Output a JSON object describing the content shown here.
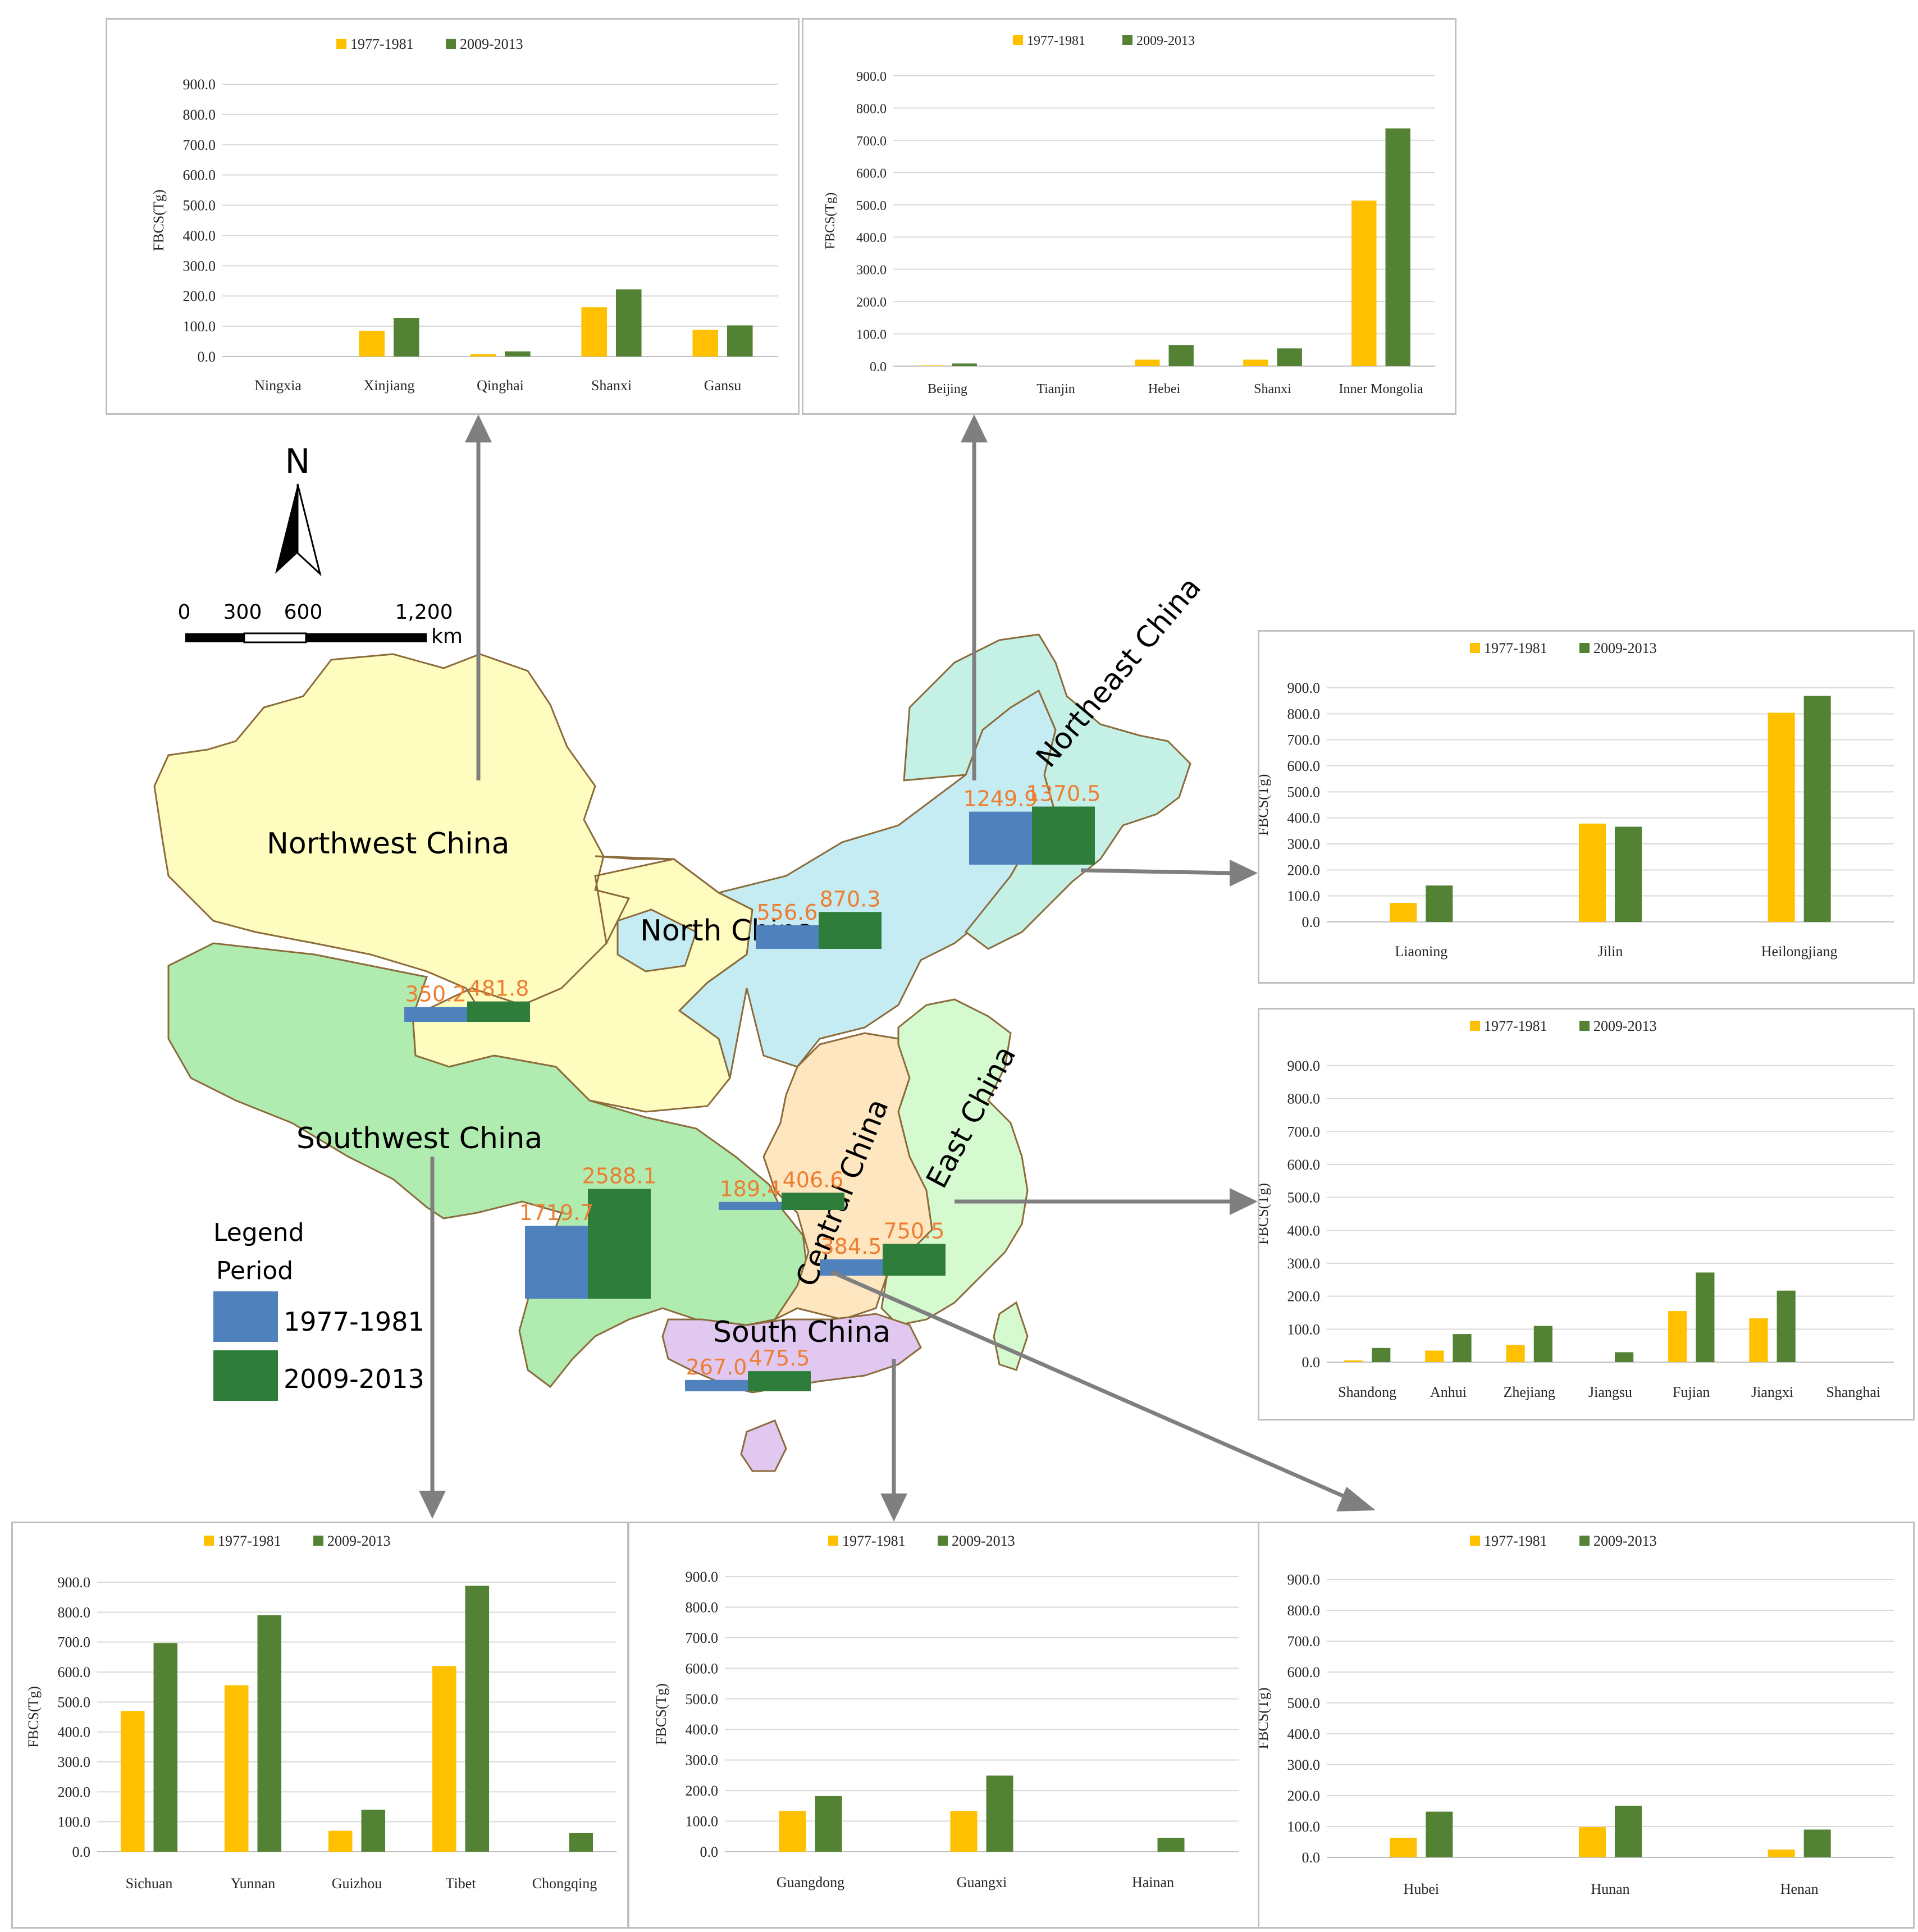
{
  "colors": {
    "early_bar": "#ffc000",
    "late_bar": "#548235",
    "map_early": "#4f81bd",
    "map_late": "#2e7d3a",
    "value_label": "#ed7d31",
    "northwest": "#fffcc0",
    "north": "#c5ecf2",
    "northeast": "#c5f0e6",
    "southwest": "#b0ecb0",
    "central": "#fde6c0",
    "east": "#d6fad0",
    "south": "#e0c8f0",
    "grid": "#d9d9d9",
    "arrow": "#7f7f7f"
  },
  "map": {
    "compass_letter": "N",
    "scale_ticks": [
      "0",
      "300",
      "600",
      "1,200"
    ],
    "scale_unit": "km",
    "legend_title": "Legend",
    "legend_subtitle": "Period",
    "legend_items": [
      "1977-1981",
      "2009-2013"
    ],
    "regions": [
      {
        "name": "Northwest China",
        "v1977": 350.2,
        "v2009": 481.8,
        "v1977_label": "350.2",
        "v2009_label": "481.8"
      },
      {
        "name": "North China",
        "v1977": 556.6,
        "v2009": 870.3,
        "v1977_label": "556.6",
        "v2009_label": "870.3"
      },
      {
        "name": "Northeast China",
        "v1977": 1249.9,
        "v2009": 1370.5,
        "v1977_label": "1249.9",
        "v2009_label": "1370.5"
      },
      {
        "name": "Southwest China",
        "v1977": 1719.7,
        "v2009": 2588.1,
        "v1977_label": "1719.7",
        "v2009_label": "2588.1"
      },
      {
        "name": "Central China",
        "v1977": 189.4,
        "v2009": 406.6,
        "v1977_label": "189.4",
        "v2009_label": "406.6"
      },
      {
        "name": "East China",
        "v1977": 384.5,
        "v2009": 750.5,
        "v1977_label": "384.5",
        "v2009_label": "750.5"
      },
      {
        "name": "South China",
        "v1977": 267.0,
        "v2009": 475.5,
        "v1977_label": "267.0",
        "v2009_label": "475.5"
      }
    ]
  },
  "chart_data": [
    {
      "id": "northwest",
      "type": "bar",
      "title": "",
      "ylabel": "FBCS(Tg)",
      "xlabel": "",
      "ylim": [
        0,
        900
      ],
      "yticks": [
        "0.0",
        "100.0",
        "200.0",
        "300.0",
        "400.0",
        "500.0",
        "600.0",
        "700.0",
        "800.0",
        "900.0"
      ],
      "legend": "top-center",
      "categories": [
        "Ningxia",
        "Xinjiang",
        "Qinghai",
        "Shanxi",
        "Gansu"
      ],
      "series": [
        {
          "name": "1977-1981",
          "values": [
            0,
            85,
            8,
            163,
            88
          ]
        },
        {
          "name": "2009-2013",
          "values": [
            0,
            128,
            17,
            222,
            103
          ]
        }
      ]
    },
    {
      "id": "north",
      "type": "bar",
      "title": "",
      "ylabel": "FBCS(Tg)",
      "xlabel": "",
      "ylim": [
        0,
        900
      ],
      "yticks": [
        "0.0",
        "100.0",
        "200.0",
        "300.0",
        "400.0",
        "500.0",
        "600.0",
        "700.0",
        "800.0",
        "900.0"
      ],
      "legend": "top-center",
      "categories": [
        "Beijing",
        "Tianjin",
        "Hebei",
        "Shanxi",
        "Inner Mongolia"
      ],
      "series": [
        {
          "name": "1977-1981",
          "values": [
            2,
            0,
            20,
            20,
            513
          ]
        },
        {
          "name": "2009-2013",
          "values": [
            8,
            0,
            65,
            55,
            737
          ]
        }
      ]
    },
    {
      "id": "northeast",
      "type": "bar",
      "title": "",
      "ylabel": "FBCS(Tg)",
      "xlabel": "",
      "ylim": [
        0,
        900
      ],
      "yticks": [
        "0.0",
        "100.0",
        "200.0",
        "300.0",
        "400.0",
        "500.0",
        "600.0",
        "700.0",
        "800.0",
        "900.0"
      ],
      "legend": "top-center",
      "categories": [
        "Liaoning",
        "Jilin",
        "Heilongjiang"
      ],
      "series": [
        {
          "name": "1977-1981",
          "values": [
            73,
            378,
            804
          ]
        },
        {
          "name": "2009-2013",
          "values": [
            140,
            366,
            869
          ]
        }
      ]
    },
    {
      "id": "east",
      "type": "bar",
      "title": "",
      "ylabel": "FBCS(Tg)",
      "xlabel": "",
      "ylim": [
        0,
        900
      ],
      "yticks": [
        "0.0",
        "100.0",
        "200.0",
        "300.0",
        "400.0",
        "500.0",
        "600.0",
        "700.0",
        "800.0",
        "900.0"
      ],
      "legend": "top-center",
      "categories": [
        "Shandong",
        "Anhui",
        "Zhejiang",
        "Jiangsu",
        "Fujian",
        "Jiangxi",
        "Shanghai"
      ],
      "series": [
        {
          "name": "1977-1981",
          "values": [
            5,
            35,
            52,
            0,
            155,
            133,
            0
          ]
        },
        {
          "name": "2009-2013",
          "values": [
            43,
            85,
            110,
            30,
            272,
            217,
            0
          ]
        }
      ]
    },
    {
      "id": "southwest",
      "type": "bar",
      "title": "",
      "ylabel": "FBCS(Tg)",
      "xlabel": "",
      "ylim": [
        0,
        900
      ],
      "yticks": [
        "0.0",
        "100.0",
        "200.0",
        "300.0",
        "400.0",
        "500.0",
        "600.0",
        "700.0",
        "800.0",
        "900.0"
      ],
      "legend": "top-center",
      "categories": [
        "Sichuan",
        "Yunnan",
        "Guizhou",
        "Tibet",
        "Chongqing"
      ],
      "series": [
        {
          "name": "1977-1981",
          "values": [
            470,
            556,
            70,
            620,
            0
          ]
        },
        {
          "name": "2009-2013",
          "values": [
            697,
            790,
            140,
            888,
            62
          ]
        }
      ]
    },
    {
      "id": "south",
      "type": "bar",
      "title": "",
      "ylabel": "FBCS(Tg)",
      "xlabel": "",
      "ylim": [
        0,
        900
      ],
      "yticks": [
        "0.0",
        "100.0",
        "200.0",
        "300.0",
        "400.0",
        "500.0",
        "600.0",
        "700.0",
        "800.0",
        "900.0"
      ],
      "legend": "top-center",
      "categories": [
        "Guangdong",
        "Guangxi",
        "Hainan"
      ],
      "series": [
        {
          "name": "1977-1981",
          "values": [
            133,
            133,
            0
          ]
        },
        {
          "name": "2009-2013",
          "values": [
            182,
            249,
            45
          ]
        }
      ]
    },
    {
      "id": "central",
      "type": "bar",
      "title": "",
      "ylabel": "FBCS(Tg)",
      "xlabel": "",
      "ylim": [
        0,
        900
      ],
      "yticks": [
        "0.0",
        "100.0",
        "200.0",
        "300.0",
        "400.0",
        "500.0",
        "600.0",
        "700.0",
        "800.0",
        "900.0"
      ],
      "legend": "top-center",
      "categories": [
        "Hubei",
        "Hunan",
        "Henan"
      ],
      "series": [
        {
          "name": "1977-1981",
          "values": [
            63,
            98,
            25
          ]
        },
        {
          "name": "2009-2013",
          "values": [
            148,
            167,
            90
          ]
        }
      ]
    }
  ]
}
